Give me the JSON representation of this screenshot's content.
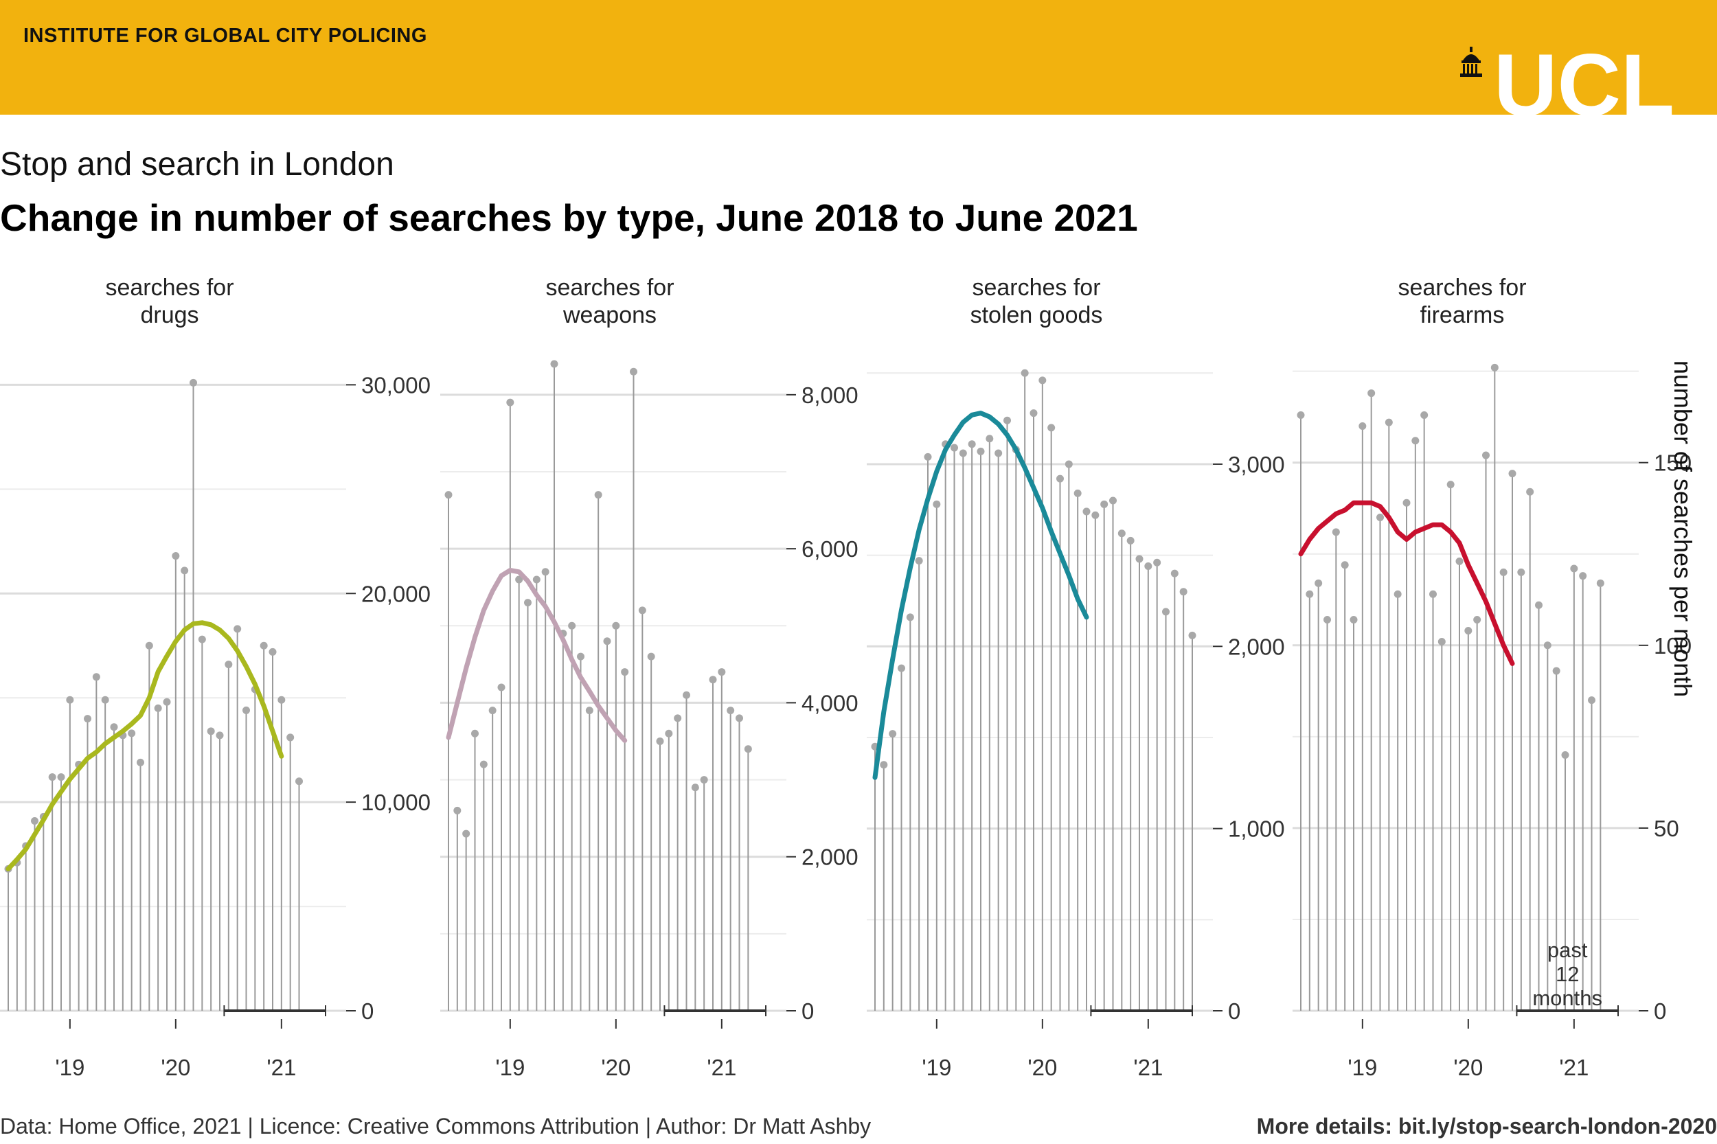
{
  "header": {
    "institute": "INSTITUTE FOR GLOBAL CITY POLICING",
    "logo_text": "UCL"
  },
  "subtitle": "Stop and search in London",
  "title": "Change in number of searches by type, June 2018 to June 2021",
  "y_axis_title": "number of searches per month",
  "annotation": "past\n12\nmonths",
  "footer": {
    "left": "Data: Home Office, 2021 | Licence: Creative Commons Attribution | Author: Dr Matt Ashby",
    "right": "More details: bit.ly/stop-search-london-2020"
  },
  "colors": {
    "banner": "#f2b20e",
    "drugs": "#a9b81e",
    "weapons": "#c0a2b3",
    "stolen_goods": "#1a8a99",
    "firearms": "#c8102e",
    "points": "#a8a8a8"
  },
  "chart_data": [
    {
      "type": "line",
      "facet": "searches for\ndrugs",
      "color": "#a9b81e",
      "x": [
        "2018-06",
        "2018-07",
        "2018-08",
        "2018-09",
        "2018-10",
        "2018-11",
        "2018-12",
        "2019-01",
        "2019-02",
        "2019-03",
        "2019-04",
        "2019-05",
        "2019-06",
        "2019-07",
        "2019-08",
        "2019-09",
        "2019-10",
        "2019-11",
        "2019-12",
        "2020-01",
        "2020-02",
        "2020-03",
        "2020-04",
        "2020-05",
        "2020-06",
        "2020-07",
        "2020-08",
        "2020-09",
        "2020-10",
        "2020-11",
        "2020-12",
        "2021-01",
        "2021-02",
        "2021-03",
        "2021-04",
        "2021-05",
        "2021-06"
      ],
      "values": [
        6800,
        7100,
        7900,
        9100,
        9300,
        11200,
        11200,
        14900,
        11800,
        14000,
        16000,
        14900,
        13600,
        13200,
        13300,
        11900,
        17500,
        14500,
        14800,
        21800,
        21100,
        30100,
        17800,
        13400,
        13200,
        16600,
        18300,
        14400,
        15400,
        17500,
        17200,
        14900,
        13100,
        11000,
        null,
        null,
        null
      ],
      "trend": [
        6800,
        7250,
        7750,
        8450,
        9150,
        9900,
        10500,
        11100,
        11600,
        12100,
        12400,
        12800,
        13100,
        13400,
        13750,
        14150,
        15000,
        16250,
        17000,
        17700,
        18250,
        18550,
        18600,
        18500,
        18250,
        17850,
        17250,
        16500,
        15650,
        14600,
        13400,
        12200,
        null,
        null,
        null,
        null,
        null
      ],
      "ylim": [
        0,
        31000
      ],
      "yticks": [
        0,
        10000,
        20000,
        30000
      ],
      "xticks": [
        "'19",
        "'20",
        "'21"
      ]
    },
    {
      "type": "line",
      "facet": "searches for\nweapons",
      "color": "#c0a2b3",
      "x": [
        "2018-06",
        "2018-07",
        "2018-08",
        "2018-09",
        "2018-10",
        "2018-11",
        "2018-12",
        "2019-01",
        "2019-02",
        "2019-03",
        "2019-04",
        "2019-05",
        "2019-06",
        "2019-07",
        "2019-08",
        "2019-09",
        "2019-10",
        "2019-11",
        "2019-12",
        "2020-01",
        "2020-02",
        "2020-03",
        "2020-04",
        "2020-05",
        "2020-06",
        "2020-07",
        "2020-08",
        "2020-09",
        "2020-10",
        "2020-11",
        "2020-12",
        "2021-01",
        "2021-02",
        "2021-03",
        "2021-04",
        "2021-05",
        "2021-06"
      ],
      "values": [
        6700,
        2600,
        2300,
        3600,
        3200,
        3900,
        4200,
        7900,
        5600,
        5300,
        5600,
        5700,
        8400,
        4900,
        5000,
        4600,
        3900,
        6700,
        4800,
        5000,
        4400,
        8300,
        5200,
        4600,
        3500,
        3600,
        3800,
        4100,
        2900,
        3000,
        4300,
        4400,
        3900,
        3800,
        3400,
        null,
        null
      ],
      "trend": [
        3550,
        4000,
        4450,
        4850,
        5200,
        5450,
        5650,
        5720,
        5700,
        5580,
        5400,
        5250,
        5050,
        4820,
        4560,
        4330,
        4150,
        3960,
        3800,
        3640,
        3510,
        null,
        null,
        null,
        null,
        null,
        null,
        null,
        null,
        null,
        null,
        null,
        null,
        null,
        null,
        null,
        null
      ],
      "ylim": [
        0,
        8400
      ],
      "yticks": [
        0,
        2000,
        4000,
        6000,
        8000
      ],
      "xticks": [
        "'19",
        "'20",
        "'21"
      ]
    },
    {
      "type": "line",
      "facet": "searches for\nstolen goods",
      "color": "#1a8a99",
      "x": [
        "2018-06",
        "2018-07",
        "2018-08",
        "2018-09",
        "2018-10",
        "2018-11",
        "2018-12",
        "2019-01",
        "2019-02",
        "2019-03",
        "2019-04",
        "2019-05",
        "2019-06",
        "2019-07",
        "2019-08",
        "2019-09",
        "2019-10",
        "2019-11",
        "2019-12",
        "2020-01",
        "2020-02",
        "2020-03",
        "2020-04",
        "2020-05",
        "2020-06",
        "2020-07",
        "2020-08",
        "2020-09",
        "2020-10",
        "2020-11",
        "2020-12",
        "2021-01",
        "2021-02",
        "2021-03",
        "2021-04",
        "2021-05",
        "2021-06"
      ],
      "values": [
        1450,
        1350,
        1520,
        1880,
        2160,
        2470,
        3040,
        2780,
        3110,
        3090,
        3060,
        3110,
        3070,
        3140,
        3060,
        3240,
        3080,
        3500,
        3280,
        3460,
        3200,
        2920,
        3000,
        2840,
        2740,
        2720,
        2780,
        2800,
        2620,
        2580,
        2480,
        2440,
        2460,
        2190,
        2400,
        2300,
        2060
      ],
      "trend": [
        1280,
        1640,
        1930,
        2200,
        2430,
        2640,
        2810,
        2960,
        3080,
        3160,
        3230,
        3270,
        3280,
        3260,
        3220,
        3160,
        3080,
        2980,
        2870,
        2760,
        2630,
        2510,
        2390,
        2260,
        2160,
        null,
        null,
        null,
        null,
        null,
        null,
        null,
        null,
        null,
        null,
        null,
        null
      ],
      "ylim": [
        0,
        3550
      ],
      "yticks": [
        0,
        1000,
        2000,
        3000
      ],
      "xticks": [
        "'19",
        "'20",
        "'21"
      ]
    },
    {
      "type": "line",
      "facet": "searches for\nfirearms",
      "color": "#c8102e",
      "x": [
        "2018-06",
        "2018-07",
        "2018-08",
        "2018-09",
        "2018-10",
        "2018-11",
        "2018-12",
        "2019-01",
        "2019-02",
        "2019-03",
        "2019-04",
        "2019-05",
        "2019-06",
        "2019-07",
        "2019-08",
        "2019-09",
        "2019-10",
        "2019-11",
        "2019-12",
        "2020-01",
        "2020-02",
        "2020-03",
        "2020-04",
        "2020-05",
        "2020-06",
        "2020-07",
        "2020-08",
        "2020-09",
        "2020-10",
        "2020-11",
        "2020-12",
        "2021-01",
        "2021-02",
        "2021-03",
        "2021-04",
        "2021-05",
        "2021-06"
      ],
      "values": [
        163,
        114,
        117,
        107,
        131,
        122,
        107,
        160,
        169,
        135,
        161,
        114,
        139,
        156,
        163,
        114,
        101,
        144,
        123,
        104,
        107,
        152,
        176,
        120,
        147,
        120,
        142,
        111,
        100,
        93,
        70,
        121,
        119,
        85,
        117,
        null,
        null
      ],
      "trend": [
        125,
        129,
        132,
        134,
        136,
        137,
        139,
        139,
        139,
        138,
        135,
        131,
        129,
        131,
        132,
        133,
        133,
        131,
        128,
        122,
        117,
        112,
        106,
        100,
        95,
        null,
        null,
        null,
        null,
        null,
        null,
        null,
        null,
        null,
        null,
        null,
        null
      ],
      "ylim": [
        0,
        177
      ],
      "yticks": [
        0,
        50,
        100,
        150
      ],
      "xticks": [
        "'19",
        "'20",
        "'21"
      ]
    }
  ]
}
